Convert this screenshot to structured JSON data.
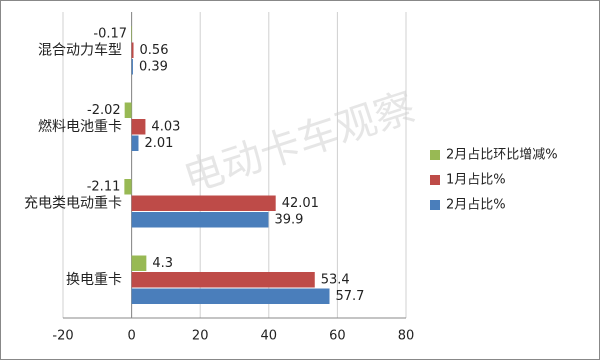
{
  "chart_data": {
    "type": "hbar",
    "watermark": "电动卡车观察",
    "categories": [
      "换电重卡",
      "充电类电动重卡",
      "燃料电池重卡",
      "混合动力车型"
    ],
    "series": [
      {
        "name": "2月占比%",
        "color": "#4a7ebb",
        "values": [
          57.7,
          39.9,
          2.01,
          0.39
        ]
      },
      {
        "name": "1月占比%",
        "color": "#be4b48",
        "values": [
          53.4,
          42.01,
          4.03,
          0.56
        ]
      },
      {
        "name": "2月占比环比增减%",
        "color": "#98b954",
        "values": [
          4.3,
          -2.11,
          -2.02,
          -0.17
        ]
      }
    ],
    "xlim": [
      -20,
      80
    ],
    "xticks": [
      -20,
      0,
      20,
      40,
      60,
      80
    ],
    "grid": true
  }
}
